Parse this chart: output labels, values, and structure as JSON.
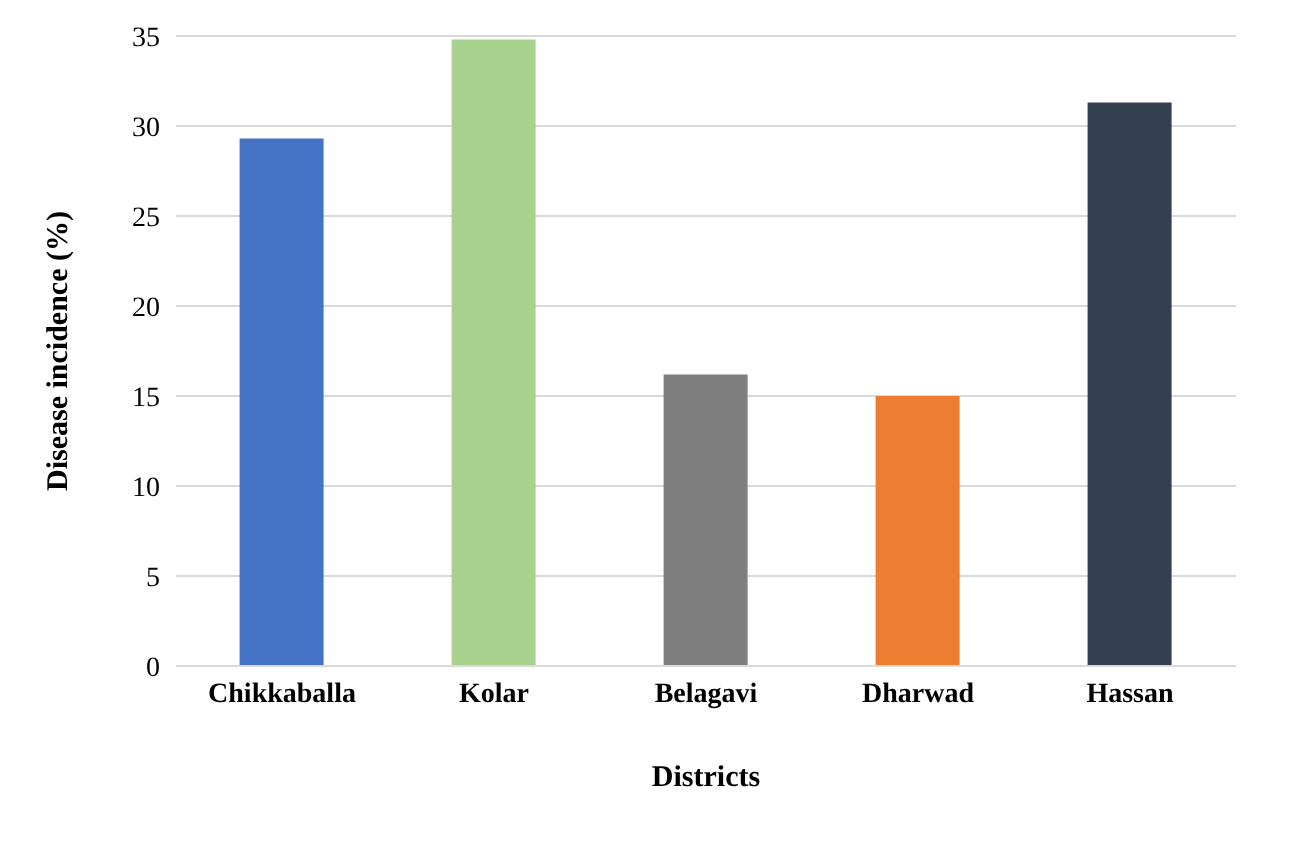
{
  "chart_data": {
    "type": "bar",
    "xlabel": "Districts",
    "ylabel": "Disease incidence (%)",
    "categories": [
      "Chikkaballa",
      "Kolar",
      "Belagavi",
      "Dharwad",
      "Hassan"
    ],
    "values": [
      29.3,
      34.8,
      16.2,
      15,
      31.3
    ],
    "colors": [
      "#4472c4",
      "#a9d18e",
      "#7f7f7f",
      "#ed7d31",
      "#333f50"
    ],
    "ylim": [
      0,
      35
    ],
    "yticks": [
      0,
      5,
      10,
      15,
      20,
      25,
      30,
      35
    ],
    "grid": "y"
  }
}
